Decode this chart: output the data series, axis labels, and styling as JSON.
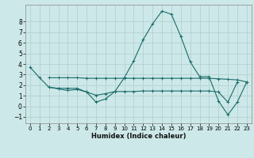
{
  "xlabel": "Humidex (Indice chaleur)",
  "x": [
    0,
    1,
    2,
    3,
    4,
    5,
    6,
    7,
    8,
    9,
    10,
    11,
    12,
    13,
    14,
    15,
    16,
    17,
    18,
    19,
    20,
    21,
    22,
    23
  ],
  "line_main": [
    3.7,
    2.7,
    1.8,
    1.7,
    1.7,
    1.7,
    1.35,
    0.4,
    0.7,
    1.4,
    2.7,
    4.3,
    6.3,
    7.8,
    9.0,
    8.7,
    6.6,
    4.2,
    2.8,
    2.8,
    0.5,
    -0.8,
    0.4,
    2.3
  ],
  "line_upper": [
    null,
    null,
    2.7,
    2.7,
    2.7,
    2.7,
    2.65,
    2.65,
    2.65,
    2.65,
    2.65,
    2.65,
    2.65,
    2.65,
    2.65,
    2.65,
    2.65,
    2.65,
    2.65,
    2.65,
    2.6,
    2.55,
    2.5,
    2.3
  ],
  "line_lower": [
    null,
    null,
    1.8,
    1.65,
    1.5,
    1.6,
    1.35,
    1.05,
    1.2,
    1.4,
    1.4,
    1.4,
    1.45,
    1.45,
    1.45,
    1.45,
    1.45,
    1.45,
    1.45,
    1.45,
    1.35,
    0.4,
    2.3,
    null
  ],
  "bg_color": "#cde8e8",
  "grid_color": "#b0cccc",
  "line_color": "#1a6b6b",
  "ylim": [
    -1.6,
    9.6
  ],
  "xlim": [
    -0.5,
    23.5
  ],
  "yticks": [
    -1,
    0,
    1,
    2,
    3,
    4,
    5,
    6,
    7,
    8
  ],
  "xticks": [
    0,
    1,
    2,
    3,
    4,
    5,
    6,
    7,
    8,
    9,
    10,
    11,
    12,
    13,
    14,
    15,
    16,
    17,
    18,
    19,
    20,
    21,
    22,
    23
  ]
}
